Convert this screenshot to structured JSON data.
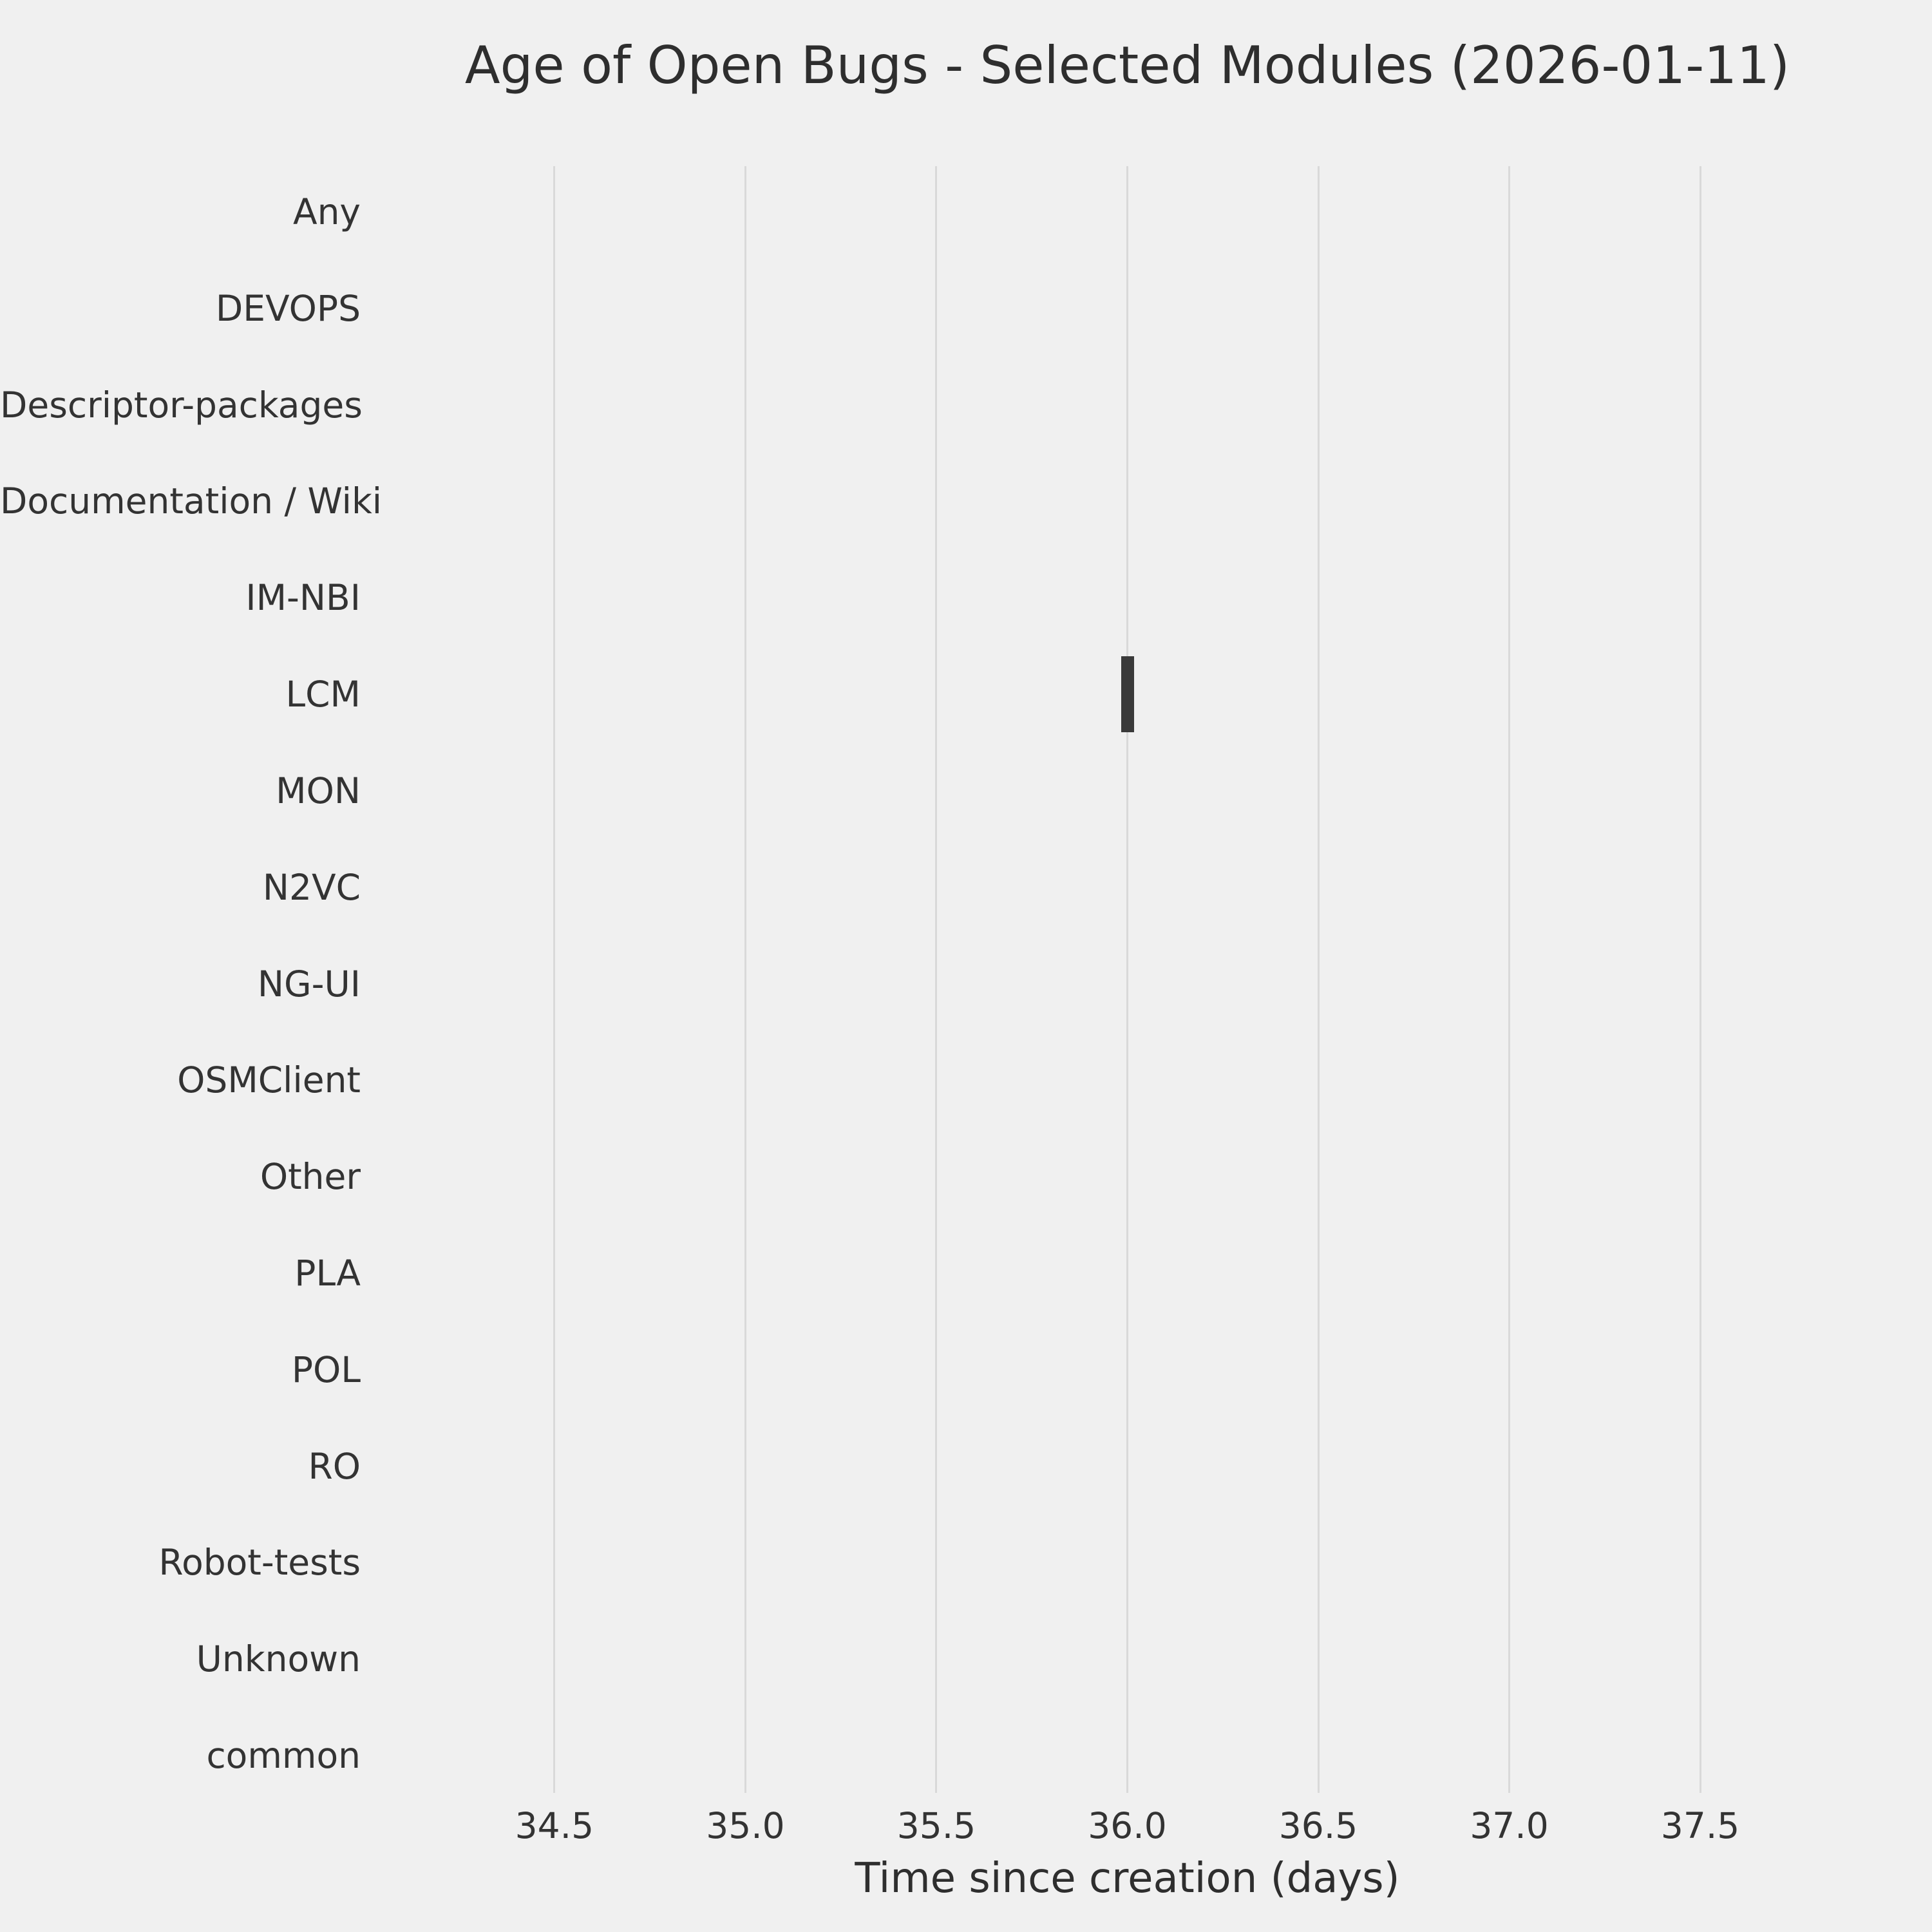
{
  "chart_data": {
    "type": "bar",
    "orientation": "horizontal",
    "title": "Age of Open Bugs - Selected Modules (2026-01-11)",
    "xlabel": "Time since creation (days)",
    "ylabel": "",
    "categories": [
      "Any",
      "DEVOPS",
      "Descriptor-packages",
      "Documentation / Wiki",
      "IM-NBI",
      "LCM",
      "MON",
      "N2VC",
      "NG-UI",
      "OSMClient",
      "Other",
      "PLA",
      "POL",
      "RO",
      "Robot-tests",
      "Unknown",
      "common"
    ],
    "series": [
      {
        "name": "Time since creation (days)",
        "values": [
          null,
          null,
          null,
          null,
          null,
          36.0,
          null,
          null,
          null,
          null,
          null,
          null,
          null,
          null,
          null,
          null,
          null
        ]
      }
    ],
    "points": [
      {
        "category": "LCM",
        "value": 36.0
      }
    ],
    "xlim": [
      34.2,
      37.8
    ],
    "xticks": [
      34.5,
      35.0,
      35.5,
      36.0,
      36.5,
      37.0,
      37.5
    ],
    "grid": true,
    "legend_position": "none",
    "colors": {
      "background": "#f0f0f0",
      "grid": "#d9d9d9",
      "text": "#333333",
      "marker": "#3a3a3a"
    }
  }
}
